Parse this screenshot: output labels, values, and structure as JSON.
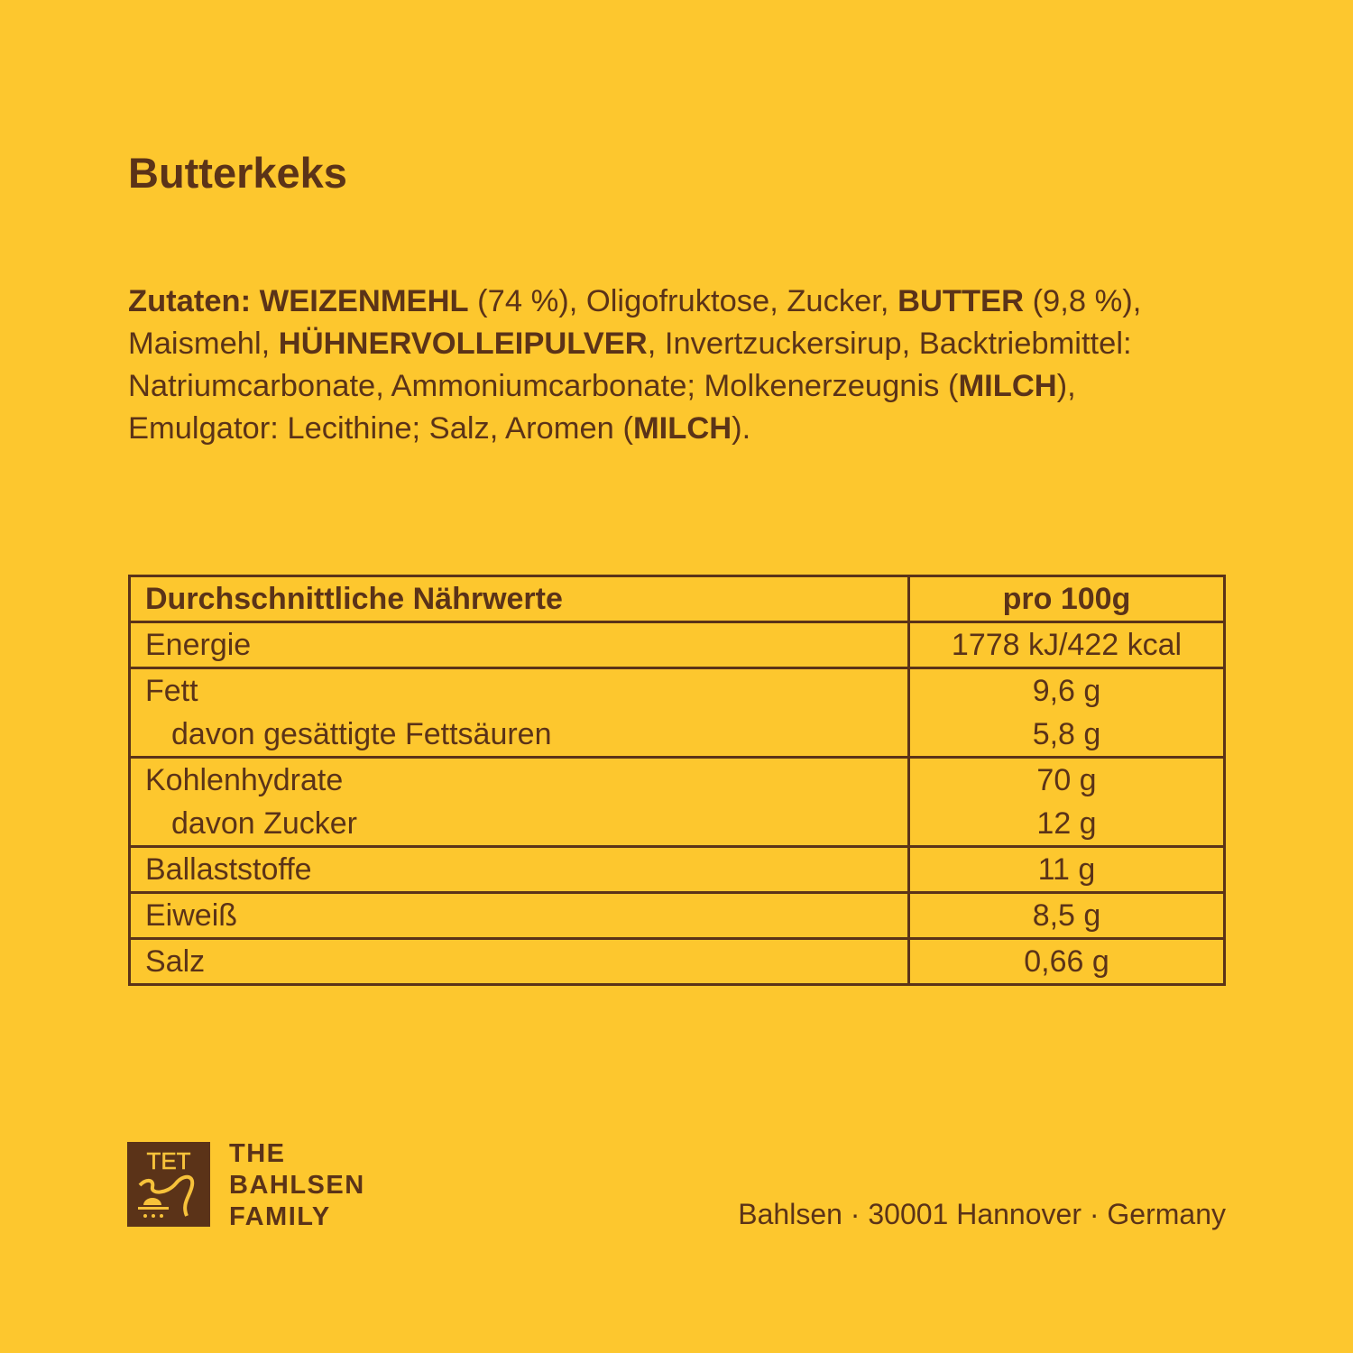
{
  "title": "Butterkeks",
  "ingredients": [
    {
      "t": "Zutaten: ",
      "b": true
    },
    {
      "t": "WEIZENMEHL",
      "b": true
    },
    {
      "t": " (74 %), Oligofruktose, Zucker, ",
      "b": false
    },
    {
      "t": "BUTTER",
      "b": true
    },
    {
      "t": " (9,8 %), Maismehl, ",
      "b": false
    },
    {
      "t": "HÜHNERVOLLEIPULVER",
      "b": true
    },
    {
      "t": ", Invertzuckersirup, Backtriebmittel: Natriumcarbonate, Ammoniumcarbonate; Molkenerzeugnis (",
      "b": false
    },
    {
      "t": "MILCH",
      "b": true
    },
    {
      "t": "), Emulgator: Lecithine; Salz, Aromen (",
      "b": false
    },
    {
      "t": "MILCH",
      "b": true
    },
    {
      "t": ").",
      "b": false
    }
  ],
  "table": {
    "header": {
      "label": "Durchschnittliche Nährwerte",
      "value": "pro 100g"
    },
    "rows": [
      {
        "label": "Energie",
        "value": "1778 kJ/422 kcal"
      },
      {
        "label": "Fett",
        "value": "9,6 g"
      },
      {
        "label": "davon gesättigte Fettsäuren",
        "value": "5,8 g"
      },
      {
        "label": "Kohlenhydrate",
        "value": "70 g"
      },
      {
        "label": "davon Zucker",
        "value": "12 g"
      },
      {
        "label": "Ballaststoffe",
        "value": "11 g"
      },
      {
        "label": "Eiweiß",
        "value": "8,5 g"
      },
      {
        "label": "Salz",
        "value": "0,66 g"
      }
    ]
  },
  "brand": {
    "line1": "THE",
    "line2": "BAHLSEN",
    "line3": "FAMILY",
    "logo_text": "TET"
  },
  "address": "Bahlsen · 30001 Hannover · Germany",
  "colors": {
    "background": "#fdc72e",
    "text": "#5b3318"
  }
}
